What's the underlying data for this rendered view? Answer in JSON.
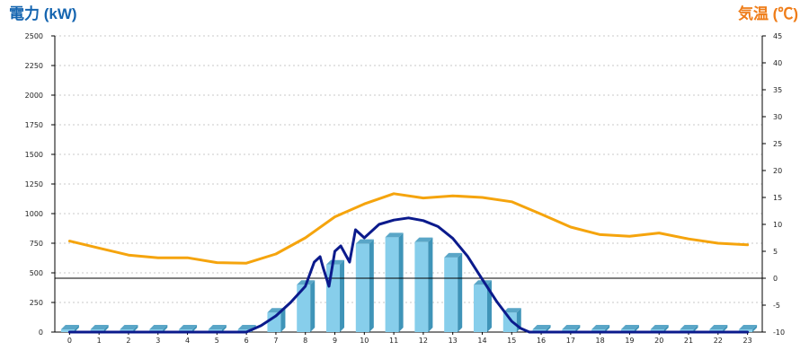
{
  "colors": {
    "left_axis_title": "#1565b0",
    "right_axis_title": "#ef7d19",
    "bar_front": "#87ceeb",
    "bar_side": "#3f94b8",
    "bar_top": "#5aa6c7",
    "power_line": "#0b1a8c",
    "temp_line": "#f5a40d",
    "grid": "#c8c8c8",
    "axis": "#000000"
  },
  "chart_data": {
    "type": "bar",
    "title": "",
    "ylabel_left": "電力 (kW)",
    "ylabel_right": "気温 (℃)",
    "categories": [
      "0",
      "1",
      "2",
      "3",
      "4",
      "5",
      "6",
      "7",
      "8",
      "9",
      "10",
      "11",
      "12",
      "13",
      "14",
      "15",
      "16",
      "17",
      "18",
      "19",
      "20",
      "21",
      "22",
      "23"
    ],
    "ylim_left": [
      0,
      2500
    ],
    "yticks_left": [
      0,
      250,
      500,
      750,
      1000,
      1250,
      1500,
      1750,
      2000,
      2250,
      2500
    ],
    "ylim_right": [
      -10,
      45
    ],
    "yticks_right": [
      -10,
      -5,
      0,
      5,
      10,
      15,
      20,
      25,
      30,
      35,
      40,
      45
    ],
    "grid": true,
    "series": [
      {
        "kind": "bar",
        "axis": "left",
        "values": [
          0,
          0,
          0,
          0,
          0,
          0,
          0,
          165,
          400,
          570,
          745,
          800,
          760,
          630,
          400,
          165,
          0,
          0,
          0,
          0,
          0,
          0,
          0,
          0
        ]
      },
      {
        "kind": "line",
        "axis": "right",
        "x": [
          0,
          6,
          6.5,
          7,
          7.5,
          8,
          8.3,
          8.5,
          8.6,
          8.8,
          9,
          9.2,
          9.5,
          9.7,
          10,
          10.5,
          11,
          11.5,
          12,
          12.5,
          13,
          13.5,
          14,
          14.5,
          15,
          15.3,
          15.6,
          16,
          23
        ],
        "y": [
          -10,
          -10,
          -8.8,
          -7,
          -4.5,
          -1.5,
          3,
          4,
          2,
          -1.5,
          5,
          6,
          3,
          9,
          7.5,
          10,
          10.8,
          11.2,
          10.7,
          9.6,
          7.4,
          4.1,
          -0.2,
          -4.4,
          -8,
          -9.3,
          -10,
          -10,
          -10
        ]
      },
      {
        "kind": "line",
        "axis": "right",
        "values": [
          6.9,
          5.6,
          4.3,
          3.8,
          3.8,
          2.9,
          2.8,
          4.5,
          7.5,
          11.4,
          13.8,
          15.7,
          14.9,
          15.3,
          15,
          14.2,
          11.9,
          9.5,
          8.1,
          7.8,
          8.4,
          7.3,
          6.5,
          6.2
        ]
      }
    ]
  }
}
